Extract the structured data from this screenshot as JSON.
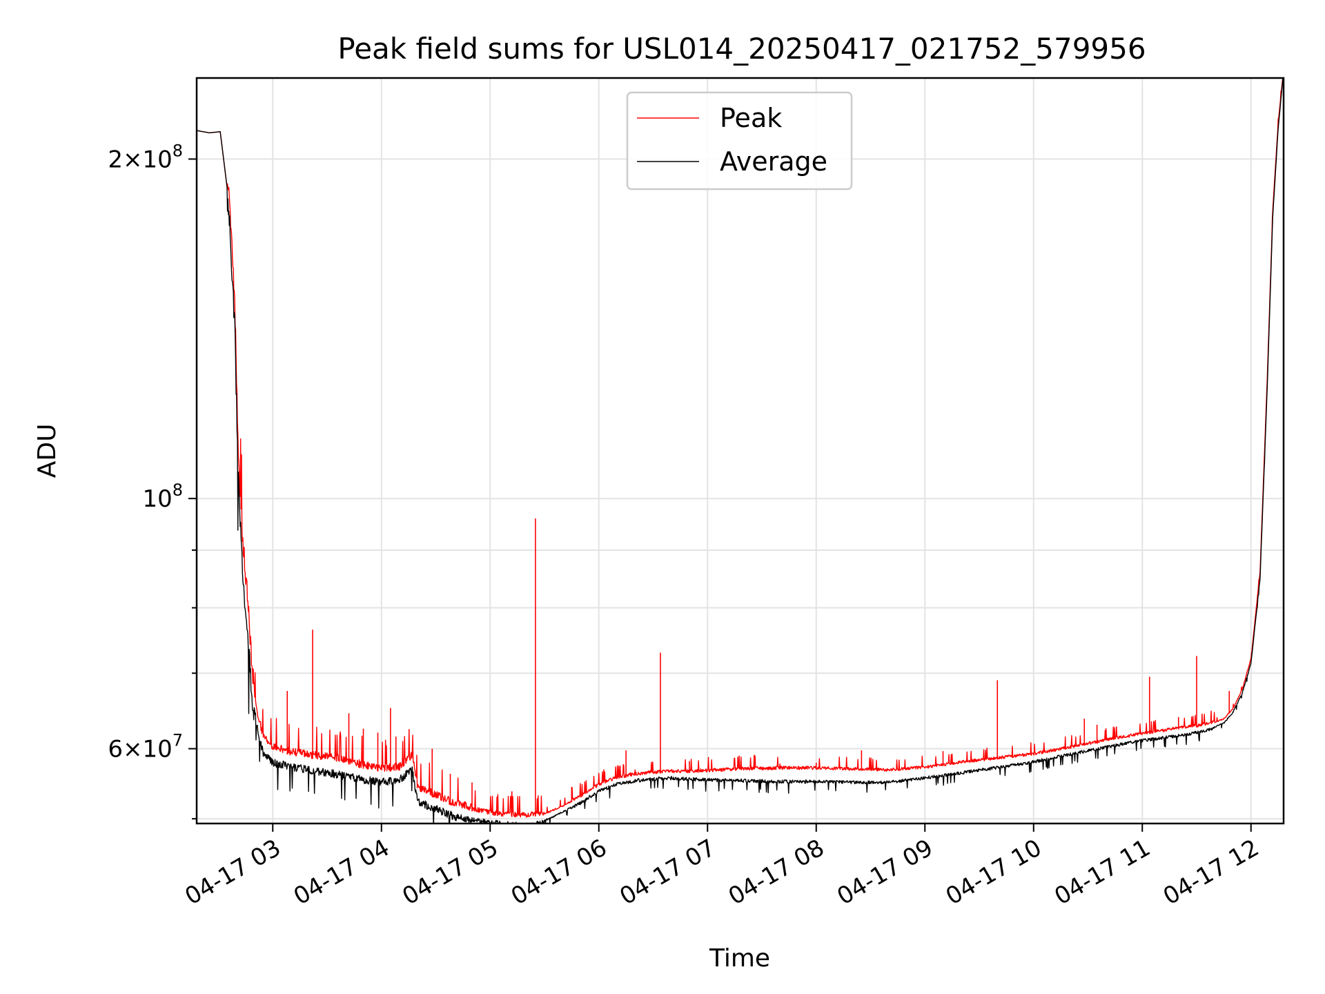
{
  "chart_data": {
    "type": "line",
    "title": "Peak field sums for USL014_20250417_021752_579956",
    "xlabel": "Time",
    "ylabel": "ADU",
    "scale_y": "log",
    "grid": true,
    "legend_position": "upper-center",
    "xlim": [
      "2025-04-17 02:18",
      "2025-04-17 12:18"
    ],
    "ylim": [
      51500000,
      236000000
    ],
    "x_ticks": [
      "04-17 03",
      "04-17 04",
      "04-17 05",
      "04-17 06",
      "04-17 07",
      "04-17 08",
      "04-17 09",
      "04-17 10",
      "04-17 11",
      "04-17 12"
    ],
    "y_major_ticks": [
      {
        "value": 200000000,
        "label": "2×10^8"
      },
      {
        "value": 100000000,
        "label": "10^8"
      },
      {
        "value": 60000000,
        "label": "6×10^7"
      }
    ],
    "y_minor_ticks": [
      90000000,
      80000000,
      70000000,
      52000000
    ],
    "series": [
      {
        "name": "Peak",
        "color": "#ff0000",
        "x": [
          "02:18",
          "02:25",
          "02:31",
          "02:36",
          "02:39",
          "02:41",
          "02:43",
          "02:46",
          "02:49",
          "02:52",
          "02:55",
          "03:00",
          "03:10",
          "03:20",
          "03:30",
          "03:40",
          "03:50",
          "04:00",
          "04:10",
          "04:17",
          "04:20",
          "04:30",
          "04:40",
          "04:50",
          "05:00",
          "05:10",
          "05:20",
          "05:30",
          "05:40",
          "05:50",
          "06:00",
          "06:10",
          "06:20",
          "06:30",
          "06:40",
          "06:50",
          "07:00",
          "07:20",
          "07:40",
          "08:00",
          "08:20",
          "08:40",
          "09:00",
          "09:20",
          "09:40",
          "10:00",
          "10:20",
          "10:40",
          "11:00",
          "11:20",
          "11:30",
          "11:40",
          "11:45",
          "11:50",
          "11:55",
          "12:00",
          "12:05",
          "12:09",
          "12:12",
          "12:15",
          "12:18"
        ],
        "values": [
          212000000,
          211000000,
          211500000,
          182000000,
          146000000,
          108000000,
          92000000,
          80000000,
          68000000,
          63500000,
          61000000,
          59800000,
          59200000,
          58800000,
          58600000,
          58200000,
          57600000,
          57200000,
          57400000,
          58800000,
          55000000,
          54200000,
          53300000,
          52800000,
          52400000,
          52200000,
          52100000,
          52400000,
          53300000,
          54300000,
          55600000,
          56400000,
          56800000,
          57000000,
          57100000,
          57100000,
          57200000,
          57400000,
          57500000,
          57500000,
          57400000,
          57300000,
          57600000,
          58200000,
          58700000,
          59200000,
          60000000,
          60900000,
          61700000,
          62400000,
          62700000,
          63200000,
          63700000,
          65000000,
          67500000,
          72000000,
          86000000,
          128000000,
          180000000,
          215000000,
          240000000
        ]
      },
      {
        "name": "Average",
        "color": "#000000",
        "x": [
          "02:18",
          "02:25",
          "02:31",
          "02:36",
          "02:39",
          "02:41",
          "02:43",
          "02:46",
          "02:49",
          "02:52",
          "02:55",
          "03:00",
          "03:10",
          "03:20",
          "03:30",
          "03:40",
          "03:50",
          "04:00",
          "04:10",
          "04:17",
          "04:20",
          "04:30",
          "04:40",
          "04:50",
          "05:00",
          "05:10",
          "05:20",
          "05:30",
          "05:40",
          "05:50",
          "06:00",
          "06:10",
          "06:20",
          "06:30",
          "06:40",
          "06:50",
          "07:00",
          "07:20",
          "07:40",
          "08:00",
          "08:20",
          "08:40",
          "09:00",
          "09:20",
          "09:40",
          "10:00",
          "10:20",
          "10:40",
          "11:00",
          "11:20",
          "11:30",
          "11:40",
          "11:45",
          "11:50",
          "11:55",
          "12:00",
          "12:05",
          "12:09",
          "12:12",
          "12:15",
          "12:18"
        ],
        "values": [
          212000000,
          211000000,
          211500000,
          182000000,
          145000000,
          106000000,
          90000000,
          78000000,
          67000000,
          62200000,
          59800000,
          58800000,
          58300000,
          57900000,
          57600000,
          57200000,
          56800000,
          56500000,
          56800000,
          57900000,
          54300000,
          53500000,
          52700000,
          52200000,
          51900000,
          51700000,
          51600000,
          51900000,
          52800000,
          53900000,
          55200000,
          56000000,
          56400000,
          56600000,
          56700000,
          56600000,
          56500000,
          56400000,
          56300000,
          56300000,
          56200000,
          56200000,
          56700000,
          57300000,
          57900000,
          58600000,
          59500000,
          60400000,
          61200000,
          61800000,
          62200000,
          62800000,
          63300000,
          64700000,
          67200000,
          71500000,
          85000000,
          126000000,
          178000000,
          213000000,
          240000000
        ]
      }
    ],
    "spikes": [
      {
        "series": "Peak",
        "x": "03:22",
        "value": 76500000
      },
      {
        "series": "Peak",
        "x": "03:42",
        "value": 64500000
      },
      {
        "series": "Peak",
        "x": "03:50",
        "value": 62500000
      },
      {
        "series": "Peak",
        "x": "03:58",
        "value": 62000000
      },
      {
        "series": "Peak",
        "x": "04:08",
        "value": 61500000
      },
      {
        "series": "Peak",
        "x": "03:08",
        "value": 67500000
      },
      {
        "series": "Peak",
        "x": "04:28",
        "value": 60000000
      },
      {
        "series": "Peak",
        "x": "04:05",
        "value": 65200000
      },
      {
        "series": "Peak",
        "x": "04:38",
        "value": 57000000
      },
      {
        "series": "Peak",
        "x": "04:50",
        "value": 56000000
      },
      {
        "series": "Peak",
        "x": "05:12",
        "value": 55000000
      },
      {
        "series": "Peak",
        "x": "05:25",
        "value": 96000000
      },
      {
        "series": "Peak",
        "x": "05:45",
        "value": 55500000
      },
      {
        "series": "Peak",
        "x": "06:15",
        "value": 59800000
      },
      {
        "series": "Peak",
        "x": "06:20",
        "value": 57500000
      },
      {
        "series": "Peak",
        "x": "06:34",
        "value": 73000000
      },
      {
        "series": "Peak",
        "x": "06:50",
        "value": 58500000
      },
      {
        "series": "Peak",
        "x": "07:40",
        "value": 58200000
      },
      {
        "series": "Peak",
        "x": "08:00",
        "value": 58300000
      },
      {
        "series": "Peak",
        "x": "08:25",
        "value": 59800000
      },
      {
        "series": "Peak",
        "x": "09:10",
        "value": 59700000
      },
      {
        "series": "Peak",
        "x": "09:40",
        "value": 69000000
      },
      {
        "series": "Peak",
        "x": "10:28",
        "value": 63800000
      },
      {
        "series": "Peak",
        "x": "10:35",
        "value": 63000000
      },
      {
        "series": "Peak",
        "x": "11:04",
        "value": 69500000
      },
      {
        "series": "Peak",
        "x": "11:20",
        "value": 64000000
      },
      {
        "series": "Peak",
        "x": "11:30",
        "value": 72500000
      },
      {
        "series": "Peak",
        "x": "11:48",
        "value": 67500000
      }
    ]
  }
}
